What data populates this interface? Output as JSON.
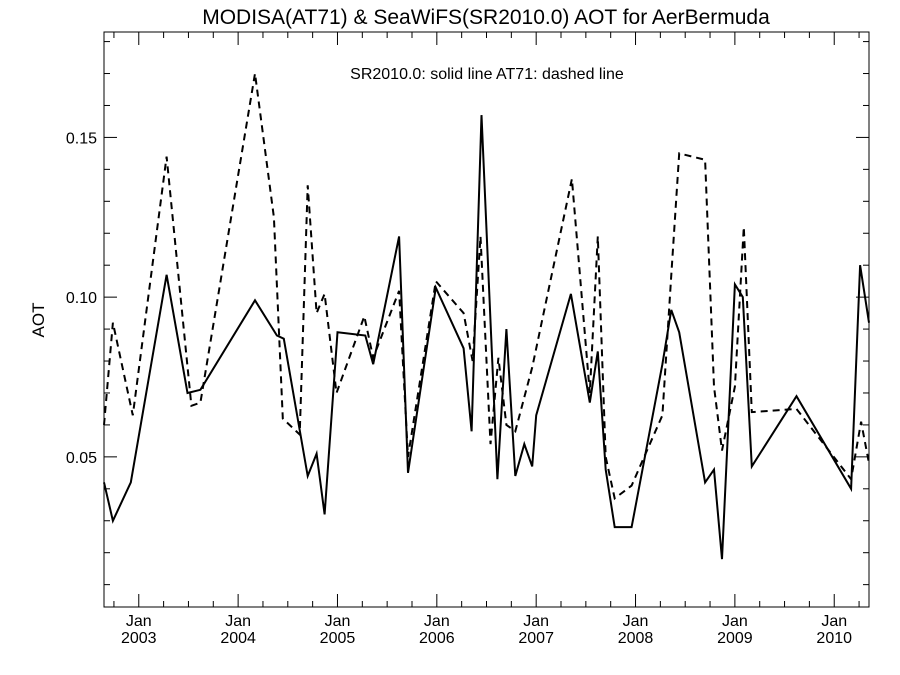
{
  "chart_data": {
    "type": "line",
    "title": "MODISA(AT71) & SeaWiFS(SR2010.0)  AOT for AerBermuda",
    "annotation": "SR2010.0: solid line   AT71: dashed line",
    "ylabel": "AOT",
    "xlabel": "",
    "xlim": [
      2002.65,
      2010.35
    ],
    "ylim": [
      0.003,
      0.183
    ],
    "y_ticks": [
      0.05,
      0.1,
      0.15
    ],
    "y_tick_labels": [
      "0.05",
      "0.10",
      "0.15"
    ],
    "x_ticks": [
      {
        "x": 2003.0,
        "month": "Jan",
        "year": "2003"
      },
      {
        "x": 2004.0,
        "month": "Jan",
        "year": "2004"
      },
      {
        "x": 2005.0,
        "month": "Jan",
        "year": "2005"
      },
      {
        "x": 2006.0,
        "month": "Jan",
        "year": "2006"
      },
      {
        "x": 2007.0,
        "month": "Jan",
        "year": "2007"
      },
      {
        "x": 2008.0,
        "month": "Jan",
        "year": "2008"
      },
      {
        "x": 2009.0,
        "month": "Jan",
        "year": "2009"
      },
      {
        "x": 2010.0,
        "month": "Jan",
        "year": "2010"
      }
    ],
    "grid": false,
    "series": [
      {
        "style": "solid",
        "points": [
          [
            2002.65,
            0.042
          ],
          [
            2002.74,
            0.03
          ],
          [
            2002.92,
            0.042
          ],
          [
            2003.28,
            0.107
          ],
          [
            2003.49,
            0.07
          ],
          [
            2003.62,
            0.071
          ],
          [
            2004.17,
            0.099
          ],
          [
            2004.39,
            0.088
          ],
          [
            2004.46,
            0.087
          ],
          [
            2004.7,
            0.044
          ],
          [
            2004.79,
            0.051
          ],
          [
            2004.87,
            0.032
          ],
          [
            2005.0,
            0.089
          ],
          [
            2005.28,
            0.088
          ],
          [
            2005.36,
            0.079
          ],
          [
            2005.62,
            0.119
          ],
          [
            2005.71,
            0.045
          ],
          [
            2005.99,
            0.103
          ],
          [
            2006.27,
            0.084
          ],
          [
            2006.35,
            0.058
          ],
          [
            2006.45,
            0.157
          ],
          [
            2006.61,
            0.043
          ],
          [
            2006.7,
            0.09
          ],
          [
            2006.79,
            0.044
          ],
          [
            2006.88,
            0.054
          ],
          [
            2006.96,
            0.047
          ],
          [
            2007.0,
            0.063
          ],
          [
            2007.35,
            0.101
          ],
          [
            2007.54,
            0.067
          ],
          [
            2007.62,
            0.083
          ],
          [
            2007.7,
            0.046
          ],
          [
            2007.79,
            0.028
          ],
          [
            2007.96,
            0.028
          ],
          [
            2008.27,
            0.079
          ],
          [
            2008.36,
            0.096
          ],
          [
            2008.44,
            0.089
          ],
          [
            2008.7,
            0.042
          ],
          [
            2008.79,
            0.046
          ],
          [
            2008.87,
            0.018
          ],
          [
            2009.0,
            0.104
          ],
          [
            2009.08,
            0.1
          ],
          [
            2009.17,
            0.047
          ],
          [
            2009.62,
            0.069
          ],
          [
            2010.17,
            0.04
          ],
          [
            2010.26,
            0.11
          ],
          [
            2010.35,
            0.092
          ]
        ]
      },
      {
        "style": "dashed",
        "points": [
          [
            2002.65,
            0.06
          ],
          [
            2002.74,
            0.092
          ],
          [
            2002.94,
            0.063
          ],
          [
            2003.28,
            0.144
          ],
          [
            2003.53,
            0.066
          ],
          [
            2003.62,
            0.067
          ],
          [
            2004.17,
            0.17
          ],
          [
            2004.36,
            0.125
          ],
          [
            2004.45,
            0.062
          ],
          [
            2004.62,
            0.057
          ],
          [
            2004.7,
            0.135
          ],
          [
            2004.79,
            0.095
          ],
          [
            2004.87,
            0.101
          ],
          [
            2004.99,
            0.07
          ],
          [
            2005.27,
            0.094
          ],
          [
            2005.36,
            0.081
          ],
          [
            2005.62,
            0.102
          ],
          [
            2005.71,
            0.05
          ],
          [
            2005.99,
            0.105
          ],
          [
            2006.27,
            0.095
          ],
          [
            2006.36,
            0.08
          ],
          [
            2006.44,
            0.119
          ],
          [
            2006.54,
            0.054
          ],
          [
            2006.62,
            0.081
          ],
          [
            2006.7,
            0.06
          ],
          [
            2006.79,
            0.058
          ],
          [
            2006.96,
            0.078
          ],
          [
            2007.36,
            0.137
          ],
          [
            2007.54,
            0.07
          ],
          [
            2007.62,
            0.119
          ],
          [
            2007.7,
            0.05
          ],
          [
            2007.79,
            0.037
          ],
          [
            2007.96,
            0.041
          ],
          [
            2008.27,
            0.063
          ],
          [
            2008.36,
            0.107
          ],
          [
            2008.44,
            0.145
          ],
          [
            2008.7,
            0.143
          ],
          [
            2008.79,
            0.072
          ],
          [
            2008.87,
            0.052
          ],
          [
            2009.0,
            0.072
          ],
          [
            2009.09,
            0.122
          ],
          [
            2009.17,
            0.064
          ],
          [
            2009.62,
            0.065
          ],
          [
            2010.17,
            0.043
          ],
          [
            2010.27,
            0.061
          ],
          [
            2010.35,
            0.048
          ]
        ]
      }
    ]
  }
}
